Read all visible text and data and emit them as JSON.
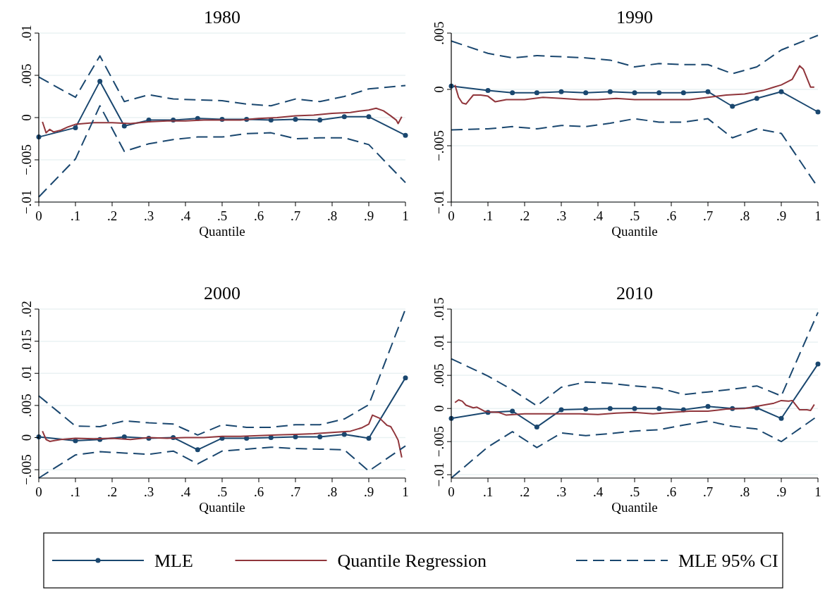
{
  "chart_data": [
    {
      "type": "line",
      "title": "1980",
      "xlabel": "Quantile",
      "xlim": [
        0,
        1
      ],
      "ylim": [
        -0.01,
        0.01
      ],
      "grid": "y",
      "legend": "bottom",
      "xticks": [
        {
          "value": 0,
          "label": "0"
        },
        {
          "value": 0.1,
          "label": ".1"
        },
        {
          "value": 0.2,
          "label": ".2"
        },
        {
          "value": 0.3,
          "label": ".3"
        },
        {
          "value": 0.4,
          "label": ".4"
        },
        {
          "value": 0.5,
          "label": ".5"
        },
        {
          "value": 0.6,
          "label": ".6"
        },
        {
          "value": 0.7,
          "label": ".7"
        },
        {
          "value": 0.8,
          "label": ".8"
        },
        {
          "value": 0.9,
          "label": ".9"
        },
        {
          "value": 1,
          "label": "1"
        }
      ],
      "yticks": [
        {
          "value": -0.01,
          "label": "−.01"
        },
        {
          "value": -0.005,
          "label": "−.005"
        },
        {
          "value": 0,
          "label": "0"
        },
        {
          "value": 0.005,
          "label": ".005"
        },
        {
          "value": 0.01,
          "label": ".01"
        }
      ],
      "series": [
        {
          "name": "MLE",
          "color": "#1a476f",
          "marker": "circle",
          "line_style": "solid",
          "x": [
            0,
            0.1,
            0.1667,
            0.2333,
            0.3,
            0.3667,
            0.4333,
            0.5,
            0.5667,
            0.6333,
            0.7,
            0.7667,
            0.8333,
            0.9,
            1
          ],
          "values": [
            -0.0023,
            -0.0012,
            0.0043,
            -0.001,
            -0.0003,
            -0.0003,
            -0.0001,
            -0.0002,
            -0.0002,
            -0.0003,
            -0.0002,
            -0.0003,
            0.0001,
            0.0001,
            -0.0021
          ]
        },
        {
          "name": "Quantile Regression",
          "color": "#90353b",
          "marker": "none",
          "line_style": "solid",
          "x": [
            0.01,
            0.02,
            0.03,
            0.04,
            0.06,
            0.08,
            0.1,
            0.15,
            0.2,
            0.25,
            0.3,
            0.35,
            0.4,
            0.45,
            0.5,
            0.55,
            0.6,
            0.65,
            0.7,
            0.75,
            0.8,
            0.85,
            0.88,
            0.9,
            0.92,
            0.94,
            0.96,
            0.975,
            0.98,
            0.99
          ],
          "values": [
            -0.0005,
            -0.0018,
            -0.0014,
            -0.0017,
            -0.0015,
            -0.0011,
            -0.0008,
            -0.0006,
            -0.0006,
            -0.0007,
            -0.0005,
            -0.0004,
            -0.0004,
            -0.0003,
            -0.0003,
            -0.0003,
            -0.0001,
            0.0,
            0.0002,
            0.0003,
            0.0005,
            0.0006,
            0.0008,
            0.0009,
            0.0011,
            0.0008,
            0.0002,
            -0.0003,
            -0.0007,
            0.0001
          ]
        },
        {
          "name": "MLE 95% CI",
          "color": "#1a476f",
          "marker": "none",
          "line_style": "dashed",
          "x": [
            0,
            0.1,
            0.1667,
            0.2333,
            0.3,
            0.3667,
            0.4333,
            0.5,
            0.5667,
            0.6333,
            0.7,
            0.7667,
            0.8333,
            0.9,
            1
          ],
          "values": [
            0.0048,
            0.0024,
            0.0073,
            0.0019,
            0.0027,
            0.0022,
            0.0021,
            0.002,
            0.0016,
            0.0014,
            0.0022,
            0.0019,
            0.0025,
            0.0034,
            0.0038
          ]
        },
        {
          "color": "#1a476f",
          "marker": "none",
          "line_style": "dashed",
          "x": [
            0,
            0.1,
            0.1667,
            0.2333,
            0.3,
            0.3667,
            0.4333,
            0.5,
            0.5667,
            0.6333,
            0.7,
            0.7667,
            0.8333,
            0.9,
            1
          ],
          "values": [
            -0.0094,
            -0.0049,
            0.0014,
            -0.004,
            -0.0031,
            -0.0026,
            -0.0023,
            -0.0023,
            -0.0019,
            -0.0018,
            -0.0025,
            -0.0024,
            -0.0024,
            -0.0032,
            -0.0077
          ]
        }
      ]
    },
    {
      "type": "line",
      "title": "1990",
      "xlabel": "Quantile",
      "xlim": [
        0,
        1
      ],
      "ylim": [
        -0.01,
        0.005
      ],
      "grid": "y",
      "xticks": [
        {
          "value": 0,
          "label": "0"
        },
        {
          "value": 0.1,
          "label": ".1"
        },
        {
          "value": 0.2,
          "label": ".2"
        },
        {
          "value": 0.3,
          "label": ".3"
        },
        {
          "value": 0.4,
          "label": ".4"
        },
        {
          "value": 0.5,
          "label": ".5"
        },
        {
          "value": 0.6,
          "label": ".6"
        },
        {
          "value": 0.7,
          "label": ".7"
        },
        {
          "value": 0.8,
          "label": ".8"
        },
        {
          "value": 0.9,
          "label": ".9"
        },
        {
          "value": 1,
          "label": "1"
        }
      ],
      "yticks": [
        {
          "value": -0.01,
          "label": "−.01"
        },
        {
          "value": -0.005,
          "label": "−.005"
        },
        {
          "value": 0,
          "label": "0"
        },
        {
          "value": 0.005,
          "label": ".005"
        }
      ],
      "series": [
        {
          "color": "#1a476f",
          "marker": "circle",
          "line_style": "solid",
          "x": [
            0,
            0.1,
            0.1667,
            0.2333,
            0.3,
            0.3667,
            0.4333,
            0.5,
            0.5667,
            0.6333,
            0.7,
            0.7667,
            0.8333,
            0.9,
            1
          ],
          "values": [
            0.0003,
            -0.0001,
            -0.0003,
            -0.0003,
            -0.0002,
            -0.0003,
            -0.0002,
            -0.0003,
            -0.0003,
            -0.0003,
            -0.0002,
            -0.0015,
            -0.0008,
            -0.0002,
            -0.002
          ]
        },
        {
          "color": "#90353b",
          "marker": "none",
          "line_style": "solid",
          "x": [
            0.01,
            0.02,
            0.03,
            0.04,
            0.05,
            0.06,
            0.08,
            0.1,
            0.12,
            0.15,
            0.2,
            0.25,
            0.3,
            0.35,
            0.4,
            0.45,
            0.5,
            0.55,
            0.6,
            0.65,
            0.7,
            0.75,
            0.8,
            0.85,
            0.88,
            0.9,
            0.93,
            0.95,
            0.96,
            0.98,
            0.99
          ],
          "values": [
            0.0004,
            -0.0007,
            -0.0012,
            -0.0013,
            -0.0009,
            -0.0005,
            -0.0005,
            -0.0006,
            -0.0011,
            -0.0009,
            -0.0009,
            -0.0007,
            -0.0008,
            -0.0009,
            -0.0009,
            -0.0008,
            -0.0009,
            -0.0009,
            -0.0009,
            -0.0009,
            -0.0007,
            -0.0005,
            -0.0004,
            -0.0001,
            0.0002,
            0.0004,
            0.0009,
            0.0021,
            0.0018,
            0.0002,
            0.0002
          ]
        },
        {
          "color": "#1a476f",
          "marker": "none",
          "line_style": "dashed",
          "x": [
            0,
            0.1,
            0.1667,
            0.2333,
            0.3,
            0.3667,
            0.4333,
            0.5,
            0.5667,
            0.6333,
            0.7,
            0.7667,
            0.8333,
            0.9,
            1
          ],
          "values": [
            0.0043,
            0.0032,
            0.0028,
            0.003,
            0.0029,
            0.0028,
            0.0026,
            0.002,
            0.0023,
            0.0022,
            0.0022,
            0.0014,
            0.002,
            0.0035,
            0.0048
          ]
        },
        {
          "color": "#1a476f",
          "marker": "none",
          "line_style": "dashed",
          "x": [
            0,
            0.1,
            0.1667,
            0.2333,
            0.3,
            0.3667,
            0.4333,
            0.5,
            0.5667,
            0.6333,
            0.7,
            0.7667,
            0.8333,
            0.9,
            1
          ],
          "values": [
            -0.0036,
            -0.0035,
            -0.0033,
            -0.0035,
            -0.0032,
            -0.0033,
            -0.003,
            -0.0026,
            -0.0029,
            -0.0029,
            -0.0026,
            -0.0043,
            -0.0035,
            -0.0039,
            -0.0087
          ]
        }
      ]
    },
    {
      "type": "line",
      "title": "2000",
      "xlabel": "Quantile",
      "xlim": [
        0,
        1
      ],
      "ylim": [
        -0.0063,
        0.02
      ],
      "grid": "y",
      "xticks": [
        {
          "value": 0,
          "label": "0"
        },
        {
          "value": 0.1,
          "label": ".1"
        },
        {
          "value": 0.2,
          "label": ".2"
        },
        {
          "value": 0.3,
          "label": ".3"
        },
        {
          "value": 0.4,
          "label": ".4"
        },
        {
          "value": 0.5,
          "label": ".5"
        },
        {
          "value": 0.6,
          "label": ".6"
        },
        {
          "value": 0.7,
          "label": ".7"
        },
        {
          "value": 0.8,
          "label": ".8"
        },
        {
          "value": 0.9,
          "label": ".9"
        },
        {
          "value": 1,
          "label": "1"
        }
      ],
      "yticks": [
        {
          "value": -0.005,
          "label": "−.005"
        },
        {
          "value": 0,
          "label": "0"
        },
        {
          "value": 0.005,
          "label": ".005"
        },
        {
          "value": 0.01,
          "label": ".01"
        },
        {
          "value": 0.015,
          "label": ".015"
        },
        {
          "value": 0.02,
          "label": ".02"
        }
      ],
      "series": [
        {
          "color": "#1a476f",
          "marker": "circle",
          "line_style": "solid",
          "x": [
            0,
            0.1,
            0.1667,
            0.2333,
            0.3,
            0.3667,
            0.4333,
            0.5,
            0.5667,
            0.6333,
            0.7,
            0.7667,
            0.8333,
            0.9,
            1
          ],
          "values": [
            0.0001,
            -0.0005,
            -0.0003,
            0.0001,
            -0.0001,
            0.0,
            -0.0019,
            -0.0001,
            -0.0001,
            0.0,
            0.0001,
            0.0001,
            0.0005,
            -0.0001,
            0.0093
          ]
        },
        {
          "color": "#90353b",
          "marker": "none",
          "line_style": "solid",
          "x": [
            0.01,
            0.02,
            0.03,
            0.04,
            0.06,
            0.1,
            0.15,
            0.2,
            0.25,
            0.3,
            0.35,
            0.4,
            0.45,
            0.5,
            0.55,
            0.6,
            0.65,
            0.7,
            0.75,
            0.8,
            0.85,
            0.88,
            0.9,
            0.91,
            0.93,
            0.95,
            0.96,
            0.97,
            0.98,
            0.99
          ],
          "values": [
            0.001,
            -0.0003,
            -0.0006,
            -0.0005,
            -0.0003,
            -0.0001,
            -0.0002,
            -0.0001,
            -0.0003,
            0.0,
            -0.0001,
            0.0,
            0.0,
            0.0002,
            0.0002,
            0.0003,
            0.0004,
            0.0005,
            0.0006,
            0.0008,
            0.001,
            0.0015,
            0.0021,
            0.0035,
            0.003,
            0.0019,
            0.0017,
            0.0007,
            -0.0004,
            -0.0031
          ]
        },
        {
          "color": "#1a476f",
          "marker": "none",
          "line_style": "dashed",
          "x": [
            0,
            0.1,
            0.1667,
            0.2333,
            0.3,
            0.3667,
            0.4333,
            0.5,
            0.5667,
            0.6333,
            0.7,
            0.7667,
            0.8333,
            0.9,
            1
          ],
          "values": [
            0.0065,
            0.0018,
            0.0017,
            0.0026,
            0.0023,
            0.0021,
            0.0004,
            0.002,
            0.0016,
            0.0016,
            0.002,
            0.002,
            0.0029,
            0.0051,
            0.02
          ]
        },
        {
          "color": "#1a476f",
          "marker": "none",
          "line_style": "dashed",
          "x": [
            0,
            0.1,
            0.1667,
            0.2333,
            0.3,
            0.3667,
            0.4333,
            0.5,
            0.5667,
            0.6333,
            0.7,
            0.7667,
            0.8333,
            0.9,
            1
          ],
          "values": [
            -0.0063,
            -0.0027,
            -0.0022,
            -0.0024,
            -0.0026,
            -0.0021,
            -0.0041,
            -0.0021,
            -0.0018,
            -0.0015,
            -0.0017,
            -0.0018,
            -0.0019,
            -0.0052,
            -0.0013
          ]
        }
      ]
    },
    {
      "type": "line",
      "title": "2010",
      "xlabel": "Quantile",
      "xlim": [
        0,
        1
      ],
      "ylim": [
        -0.0105,
        0.015
      ],
      "grid": "y",
      "xticks": [
        {
          "value": 0,
          "label": "0"
        },
        {
          "value": 0.1,
          "label": ".1"
        },
        {
          "value": 0.2,
          "label": ".2"
        },
        {
          "value": 0.3,
          "label": ".3"
        },
        {
          "value": 0.4,
          "label": ".4"
        },
        {
          "value": 0.5,
          "label": ".5"
        },
        {
          "value": 0.6,
          "label": ".6"
        },
        {
          "value": 0.7,
          "label": ".7"
        },
        {
          "value": 0.8,
          "label": ".8"
        },
        {
          "value": 0.9,
          "label": ".9"
        },
        {
          "value": 1,
          "label": "1"
        }
      ],
      "yticks": [
        {
          "value": -0.01,
          "label": "−.01"
        },
        {
          "value": -0.005,
          "label": "−.005"
        },
        {
          "value": 0,
          "label": "0"
        },
        {
          "value": 0.005,
          "label": ".005"
        },
        {
          "value": 0.01,
          "label": ".01"
        },
        {
          "value": 0.015,
          "label": ".015"
        }
      ],
      "series": [
        {
          "color": "#1a476f",
          "marker": "circle",
          "line_style": "solid",
          "x": [
            0,
            0.1,
            0.1667,
            0.2333,
            0.3,
            0.3667,
            0.4333,
            0.5,
            0.5667,
            0.6333,
            0.7,
            0.7667,
            0.8333,
            0.9,
            1
          ],
          "values": [
            -0.0015,
            -0.0006,
            -0.0004,
            -0.0028,
            -0.0002,
            -0.0001,
            0.0,
            0.0,
            0.0,
            -0.0002,
            0.0003,
            0.0,
            0.0001,
            -0.0015,
            0.0067
          ]
        },
        {
          "color": "#90353b",
          "marker": "none",
          "line_style": "solid",
          "x": [
            0.01,
            0.02,
            0.03,
            0.04,
            0.06,
            0.07,
            0.09,
            0.1,
            0.13,
            0.15,
            0.2,
            0.25,
            0.3,
            0.35,
            0.4,
            0.45,
            0.5,
            0.55,
            0.6,
            0.65,
            0.7,
            0.75,
            0.8,
            0.85,
            0.88,
            0.9,
            0.92,
            0.93,
            0.95,
            0.97,
            0.98,
            0.99
          ],
          "values": [
            0.0009,
            0.0013,
            0.0011,
            0.0005,
            0.0001,
            0.0002,
            -0.0004,
            -0.0005,
            -0.0006,
            -0.001,
            -0.0008,
            -0.0008,
            -0.0008,
            -0.0008,
            -0.0009,
            -0.0007,
            -0.0006,
            -0.0008,
            -0.0006,
            -0.0004,
            -0.0004,
            -0.0001,
            0.0,
            0.0005,
            0.0008,
            0.0012,
            0.0011,
            0.0012,
            -0.0002,
            -0.0002,
            -0.0003,
            0.0006
          ]
        },
        {
          "color": "#1a476f",
          "marker": "none",
          "line_style": "dashed",
          "x": [
            0,
            0.1,
            0.1667,
            0.2333,
            0.3,
            0.3667,
            0.4333,
            0.5,
            0.5667,
            0.6333,
            0.7,
            0.7667,
            0.8333,
            0.9,
            1
          ],
          "values": [
            0.0075,
            0.0049,
            0.0028,
            0.0004,
            0.0032,
            0.004,
            0.0038,
            0.0034,
            0.0031,
            0.0021,
            0.0025,
            0.0029,
            0.0034,
            0.0019,
            0.0145
          ]
        },
        {
          "color": "#1a476f",
          "marker": "none",
          "line_style": "dashed",
          "x": [
            0,
            0.1,
            0.1667,
            0.2333,
            0.3,
            0.3667,
            0.4333,
            0.5,
            0.5667,
            0.6333,
            0.7,
            0.7667,
            0.8333,
            0.9,
            1
          ],
          "values": [
            -0.0105,
            -0.0058,
            -0.0035,
            -0.0059,
            -0.0037,
            -0.0041,
            -0.0038,
            -0.0034,
            -0.0032,
            -0.0025,
            -0.0019,
            -0.0027,
            -0.0031,
            -0.005,
            -0.0011
          ]
        }
      ]
    }
  ]
}
